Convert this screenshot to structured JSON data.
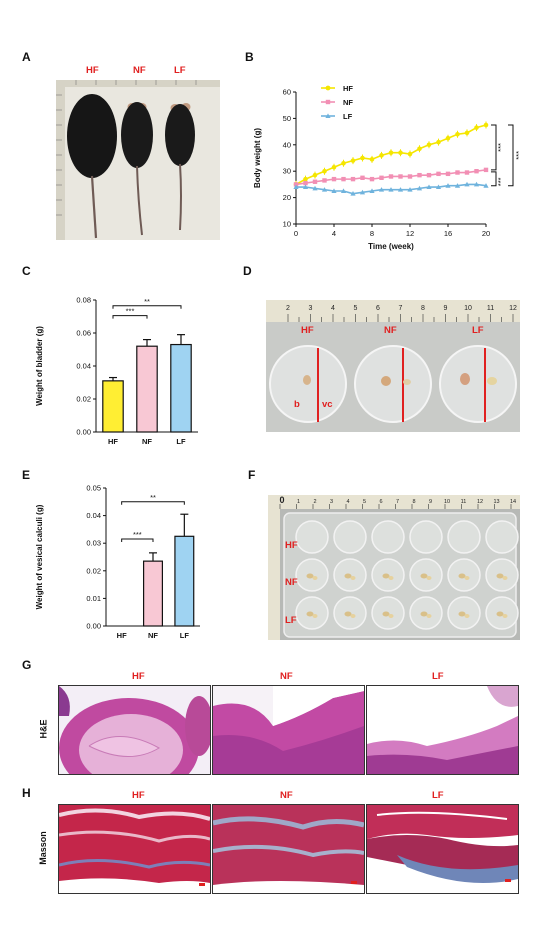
{
  "panels": {
    "A": {
      "label": "A",
      "groups": [
        "HF",
        "NF",
        "LF"
      ]
    },
    "B": {
      "label": "B"
    },
    "C": {
      "label": "C"
    },
    "D": {
      "label": "D",
      "groups": [
        "HF",
        "NF",
        "LF"
      ],
      "annotations": [
        "b",
        "vc"
      ],
      "ruler": [
        "2",
        "3",
        "4",
        "5",
        "6",
        "7",
        "8",
        "9",
        "10",
        "11",
        "12"
      ]
    },
    "E": {
      "label": "E"
    },
    "F": {
      "label": "F",
      "rows": [
        "HF",
        "NF",
        "LF"
      ],
      "ruler": [
        "0",
        "1",
        "2",
        "3",
        "4",
        "5",
        "6",
        "7",
        "8",
        "9",
        "10",
        "11",
        "12",
        "13",
        "14"
      ]
    },
    "G": {
      "label": "G",
      "row_label": "H&E",
      "groups": [
        "HF",
        "NF",
        "LF"
      ]
    },
    "H": {
      "label": "H",
      "row_label": "Masson",
      "groups": [
        "HF",
        "NF",
        "LF"
      ]
    }
  },
  "colors": {
    "HF": "#ffee33",
    "NF": "#f8c8d4",
    "LF": "#9fd3f2",
    "label_red": "#e02020",
    "line_HF": "#f5e600",
    "line_NF": "#f28fb4",
    "line_LF": "#6fb3dd"
  },
  "chart_data": [
    {
      "type": "line",
      "panel": "B",
      "xlabel": "Time (week)",
      "ylabel": "Body weight (g)",
      "xlim": [
        0,
        20
      ],
      "ylim": [
        10,
        60
      ],
      "xticks": [
        "0",
        "4",
        "8",
        "12",
        "16",
        "20"
      ],
      "yticks": [
        "10",
        "20",
        "30",
        "40",
        "50",
        "60"
      ],
      "x": [
        0,
        1,
        2,
        3,
        4,
        5,
        6,
        7,
        8,
        9,
        10,
        11,
        12,
        13,
        14,
        15,
        16,
        17,
        18,
        19,
        20
      ],
      "series": [
        {
          "name": "HF",
          "values": [
            25,
            27,
            28.5,
            30,
            31.5,
            33,
            34,
            35,
            34.5,
            36,
            37,
            37,
            36.5,
            38.5,
            40,
            41,
            42.5,
            44,
            44.5,
            46.5,
            47.5
          ]
        },
        {
          "name": "NF",
          "values": [
            25,
            25.5,
            26,
            26.5,
            27,
            27,
            27,
            27.5,
            27,
            27.5,
            28,
            28,
            28,
            28.5,
            28.5,
            29,
            29,
            29.5,
            29.5,
            30,
            30.5
          ]
        },
        {
          "name": "LF",
          "values": [
            24,
            24,
            23.5,
            23,
            22.5,
            22.5,
            21.5,
            22,
            22.5,
            23,
            23,
            23,
            23,
            23.5,
            24,
            24,
            24.5,
            24.5,
            25,
            25,
            24.5
          ]
        }
      ],
      "significance": [
        "***",
        "***",
        "***"
      ],
      "legend_position": "top-left"
    },
    {
      "type": "bar",
      "panel": "C",
      "categories": [
        "HF",
        "NF",
        "LF"
      ],
      "values": [
        0.031,
        0.052,
        0.053
      ],
      "errors": [
        0.002,
        0.004,
        0.006
      ],
      "ylabel": "Weight of bladder (g)",
      "ylim": [
        0,
        0.08
      ],
      "yticks": [
        "0.00",
        "0.02",
        "0.04",
        "0.06",
        "0.08"
      ],
      "significance": [
        {
          "pair": [
            "HF",
            "NF"
          ],
          "text": "***"
        },
        {
          "pair": [
            "HF",
            "LF"
          ],
          "text": "**"
        }
      ]
    },
    {
      "type": "bar",
      "panel": "E",
      "categories": [
        "HF",
        "NF",
        "LF"
      ],
      "values": [
        0,
        0.0235,
        0.0325
      ],
      "errors": [
        0,
        0.003,
        0.008
      ],
      "ylabel": "Weight of vesical calculi (g)",
      "ylim": [
        0,
        0.05
      ],
      "yticks": [
        "0.00",
        "0.01",
        "0.02",
        "0.03",
        "0.04",
        "0.05"
      ],
      "significance": [
        {
          "pair": [
            "HF",
            "NF"
          ],
          "text": "***"
        },
        {
          "pair": [
            "HF",
            "LF"
          ],
          "text": "**"
        }
      ]
    }
  ]
}
